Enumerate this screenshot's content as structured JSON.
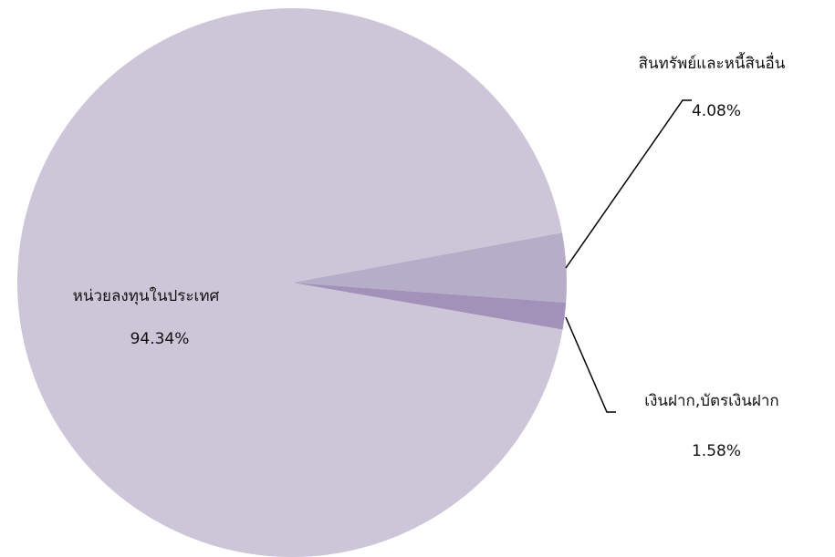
{
  "chart_data": {
    "type": "pie",
    "categories": [
      "สินทรัพย์และหนี้สินอื่น",
      "เงินฝาก,บัตรเงินฝาก",
      "หน่วยลงทุนในประเทศ"
    ],
    "values": [
      4.08,
      1.58,
      94.34
    ],
    "value_labels": [
      "4.08%",
      "1.58%",
      "94.34%"
    ],
    "colors": [
      "#b6aec9",
      "#a291b9",
      "#cdc6d8"
    ]
  }
}
